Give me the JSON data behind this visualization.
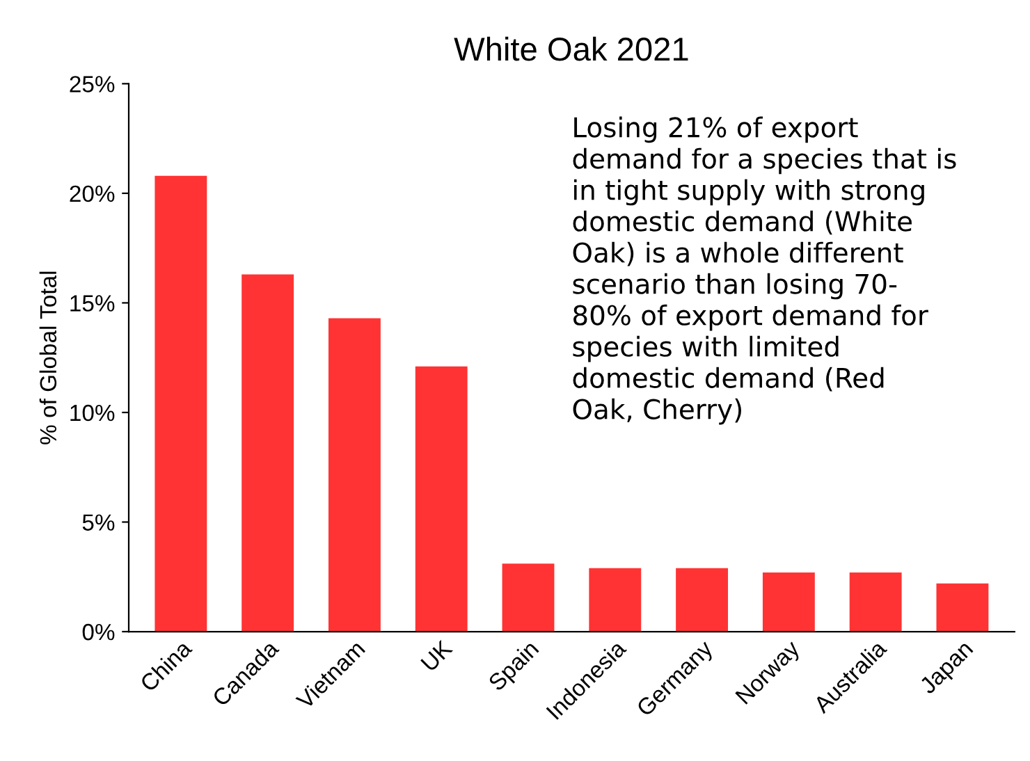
{
  "chart_data": {
    "type": "bar",
    "title": "White Oak 2021",
    "ylabel": "% of Global Total",
    "categories": [
      "China",
      "Canada",
      "Vietnam",
      "UK",
      "Spain",
      "Indonesia",
      "Germany",
      "Norway",
      "Australia",
      "Japan"
    ],
    "values": [
      20.8,
      16.3,
      14.3,
      12.1,
      3.1,
      2.9,
      2.9,
      2.7,
      2.7,
      2.2
    ],
    "color": "#ff3333",
    "ylim": [
      0,
      25
    ],
    "yticks": [
      {
        "value": 0,
        "label": "0%"
      },
      {
        "value": 5,
        "label": "5%"
      },
      {
        "value": 10,
        "label": "10%"
      },
      {
        "value": 15,
        "label": "15%"
      },
      {
        "value": 20,
        "label": "20%"
      },
      {
        "value": 25,
        "label": "25%"
      }
    ],
    "grid": false,
    "legend": false,
    "annotations": [
      "Losing 21% of export\ndemand for a species that is\nin tight supply with strong\ndomestic demand (White\nOak) is a whole different\nscenario than losing 70-\n80% of export demand for\nspecies with limited\ndomestic demand (Red\nOak, Cherry)"
    ]
  }
}
